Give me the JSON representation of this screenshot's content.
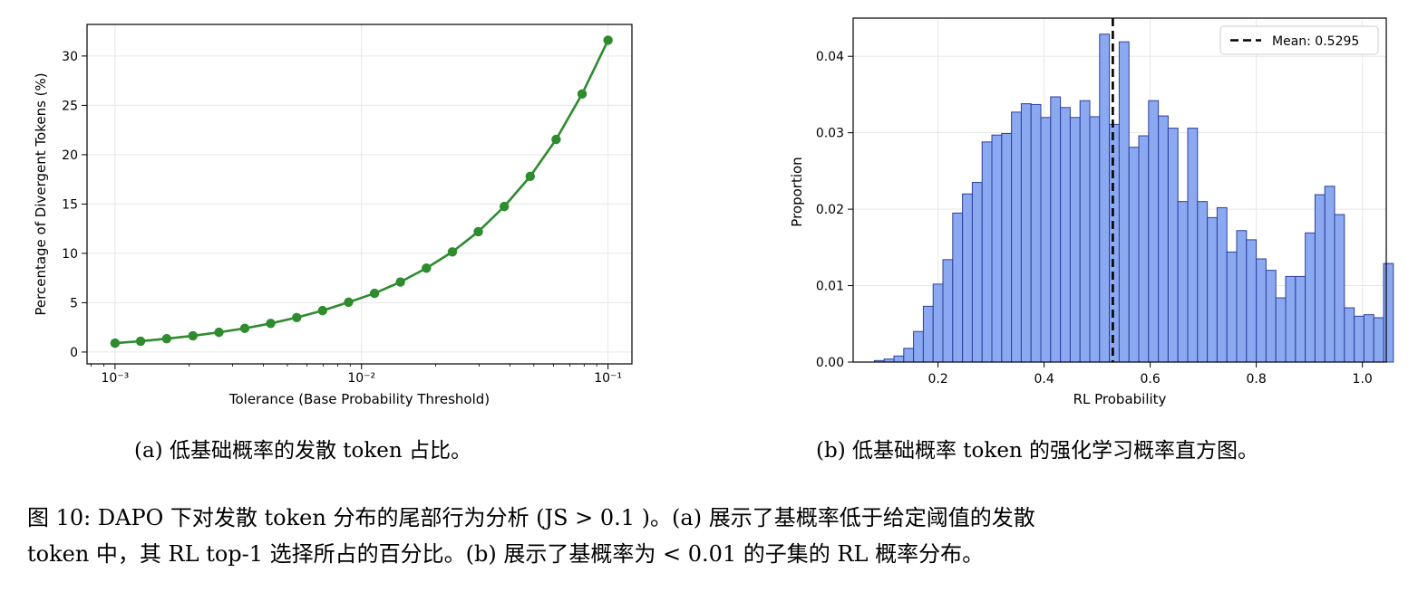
{
  "chart_data": [
    {
      "type": "line",
      "xscale": "log",
      "xlabel": "Tolerance (Base Probability Threshold)",
      "ylabel": "Percentage of Divergent Tokens (%)",
      "xlim": [
        0.00077,
        0.125
      ],
      "ylim": [
        -1.2,
        33.2
      ],
      "xticks": [
        0.001,
        0.01,
        0.1
      ],
      "xtick_labels": [
        "10⁻³",
        "10⁻²",
        "10⁻¹"
      ],
      "yticks": [
        0,
        5,
        10,
        15,
        20,
        25,
        30
      ],
      "ytick_labels": [
        "0",
        "5",
        "10",
        "15",
        "20",
        "25",
        "30"
      ],
      "grid": true,
      "color": "#2e8b2e",
      "series": [
        {
          "x": [
            0.001,
            0.00127,
            0.00162,
            0.00207,
            0.00264,
            0.00336,
            0.00428,
            0.00546,
            0.00695,
            0.00886,
            0.01129,
            0.01438,
            0.01833,
            0.02336,
            0.02976,
            0.03793,
            0.04833,
            0.06158,
            0.07848,
            0.1
          ],
          "values": [
            0.9,
            1.1,
            1.35,
            1.65,
            2.0,
            2.4,
            2.9,
            3.5,
            4.2,
            5.05,
            5.95,
            7.1,
            8.5,
            10.15,
            12.2,
            14.75,
            17.8,
            21.55,
            26.15,
            31.6
          ]
        }
      ]
    },
    {
      "type": "histogram",
      "xlabel": "RL Probability",
      "ylabel": "Proportion",
      "xlim": [
        0.04,
        1.045
      ],
      "ylim": [
        0,
        0.045
      ],
      "xticks": [
        0.2,
        0.4,
        0.6,
        0.8,
        1.0
      ],
      "xtick_labels": [
        "0.2",
        "0.4",
        "0.6",
        "0.8",
        "1.0"
      ],
      "yticks": [
        0,
        0.01,
        0.02,
        0.03,
        0.04
      ],
      "ytick_labels": [
        "0.00",
        "0.01",
        "0.02",
        "0.03",
        "0.04"
      ],
      "grid": true,
      "bar_fill": "#8aa9f0",
      "bar_edge": "#2f3f9c",
      "bin_start": 0.08,
      "bin_width": 0.01846,
      "values": [
        0.0002,
        0.0004,
        0.0008,
        0.0018,
        0.004,
        0.0073,
        0.0102,
        0.0134,
        0.0195,
        0.022,
        0.0235,
        0.0288,
        0.0297,
        0.0299,
        0.0327,
        0.0338,
        0.0337,
        0.032,
        0.0347,
        0.0333,
        0.032,
        0.0342,
        0.0321,
        0.0429,
        0.0311,
        0.0419,
        0.0281,
        0.0296,
        0.0342,
        0.0322,
        0.0306,
        0.021,
        0.0306,
        0.021,
        0.0189,
        0.0202,
        0.0144,
        0.0172,
        0.016,
        0.0135,
        0.012,
        0.0084,
        0.0112,
        0.0112,
        0.0169,
        0.0219,
        0.023,
        0.0193,
        0.0071,
        0.006,
        0.0062,
        0.0058,
        0.0129
      ],
      "mean_line": {
        "x": 0.5295,
        "style": "dashed",
        "color": "#000000"
      },
      "legend": {
        "location": "top-right",
        "entries": [
          "Mean: 0.5295"
        ]
      }
    }
  ],
  "captions": {
    "a": "(a) 低基础概率的发散 token 占比。",
    "b": "(b) 低基础概率 token 的强化学习概率直方图。",
    "figure_line1": "图 10: DAPO 下对发散 token 分布的尾部行为分析 (JS > 0.1 )。(a) 展示了基概率低于给定阈值的发散",
    "figure_line2": "token 中，其 RL top-1 选择所占的百分比。(b) 展示了基概率为 < 0.01 的子集的 RL 概率分布。"
  }
}
